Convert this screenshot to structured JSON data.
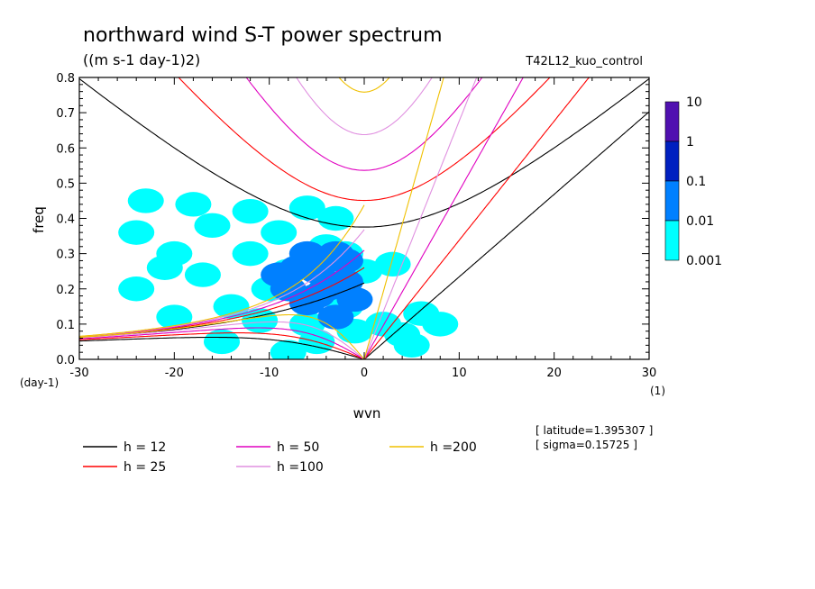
{
  "chart_data": {
    "type": "heatmap",
    "title": "northward wind S-T power spectrum",
    "subtitle": "((m s-1 day-1)2)",
    "run_label": "T42L12_kuo_control",
    "xlabel": "wvn",
    "x_unit": "(1)",
    "ylabel": "freq",
    "y_unit": "(day-1)",
    "xlim": [
      -30,
      30
    ],
    "ylim": [
      0,
      0.8
    ],
    "x_ticks": [
      -30,
      -20,
      -10,
      0,
      10,
      20,
      30
    ],
    "x_tick_labels": [
      "-30",
      "-20",
      "-10",
      "0",
      "10",
      "20",
      "30"
    ],
    "y_ticks": [
      0,
      0.1,
      0.2,
      0.3,
      0.4,
      0.5,
      0.6,
      0.7,
      0.8
    ],
    "y_tick_labels": [
      "0.0",
      "0.1",
      "0.2",
      "0.3",
      "0.4",
      "0.5",
      "0.6",
      "0.7",
      "0.8"
    ],
    "colorbar": {
      "levels": [
        "0.001",
        "0.01",
        "0.1",
        "1",
        "10"
      ],
      "colors": [
        "#00ffff",
        "#0080ff",
        "#0020c0",
        "#5010b0"
      ]
    },
    "contour_fill": [
      {
        "level": 0,
        "cells": [
          [
            -4,
            0.32
          ],
          [
            -2,
            0.3
          ],
          [
            -10,
            0.2
          ],
          [
            -6,
            0.1
          ],
          [
            -12,
            0.3
          ],
          [
            -20,
            0.3
          ],
          [
            -8,
            0.25
          ],
          [
            -14,
            0.15
          ],
          [
            -2,
            0.15
          ],
          [
            2,
            0.1
          ],
          [
            -16,
            0.38
          ],
          [
            -24,
            0.2
          ],
          [
            -5,
            0.05
          ],
          [
            -17,
            0.24
          ],
          [
            -9,
            0.36
          ],
          [
            0,
            0.25
          ],
          [
            4,
            0.07
          ],
          [
            8,
            0.1
          ],
          [
            -20,
            0.12
          ],
          [
            -12,
            0.42
          ],
          [
            -6,
            0.43
          ],
          [
            -24,
            0.36
          ],
          [
            -1,
            0.08
          ],
          [
            6,
            0.13
          ],
          [
            -18,
            0.44
          ],
          [
            -23,
            0.45
          ],
          [
            -8,
            0.02
          ],
          [
            3,
            0.27
          ],
          [
            -15,
            0.05
          ],
          [
            -3,
            0.4
          ],
          [
            -21,
            0.26
          ],
          [
            -11,
            0.11
          ],
          [
            5,
            0.04
          ]
        ]
      },
      {
        "level": 1,
        "cells": [
          [
            -5,
            0.25
          ],
          [
            -4,
            0.2
          ],
          [
            -2,
            0.22
          ],
          [
            -6,
            0.3
          ],
          [
            -3,
            0.12
          ],
          [
            -6,
            0.16
          ],
          [
            -2,
            0.28
          ],
          [
            -8,
            0.2
          ],
          [
            -1,
            0.17
          ],
          [
            -4,
            0.28
          ],
          [
            -9,
            0.24
          ],
          [
            -5,
            0.18
          ],
          [
            -3,
            0.3
          ],
          [
            -7,
            0.26
          ]
        ]
      }
    ],
    "dispersion_series": [
      {
        "name": "h = 12",
        "equivalent_depth": 12,
        "color": "#000000"
      },
      {
        "name": "h = 25",
        "equivalent_depth": 25,
        "color": "#ff0000"
      },
      {
        "name": "h = 50",
        "equivalent_depth": 50,
        "color": "#e000c0"
      },
      {
        "name": "h =100",
        "equivalent_depth": 100,
        "color": "#e090e0"
      },
      {
        "name": "h =200",
        "equivalent_depth": 200,
        "color": "#f0c000"
      }
    ],
    "annotations": [
      "[ latitude=1.395307 ]",
      "[ sigma=0.15725 ]"
    ]
  }
}
